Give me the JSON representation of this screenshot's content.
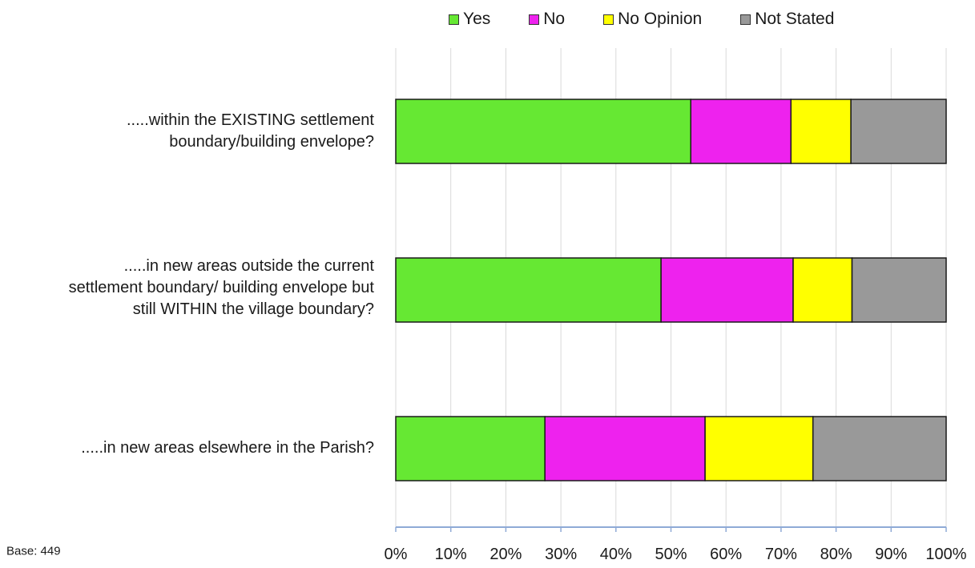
{
  "chart_data": {
    "type": "bar",
    "orientation": "horizontal",
    "stacked": true,
    "categories": [
      ".....within the EXISTING settlement\nboundary/building envelope?",
      ".....in new areas outside the current\nsettlement boundary/ building envelope but\nstill WITHIN the village boundary?",
      ".....in new areas elsewhere in the Parish?"
    ],
    "series": [
      {
        "name": "Yes",
        "color": "#66e833",
        "values": [
          53.6,
          48.2,
          27.1
        ]
      },
      {
        "name": "No",
        "color": "#ee22ee",
        "values": [
          18.2,
          24.0,
          29.1
        ]
      },
      {
        "name": "No Opinion",
        "color": "#ffff00",
        "values": [
          10.9,
          10.7,
          19.6
        ]
      },
      {
        "name": "Not Stated",
        "color": "#999999",
        "values": [
          17.3,
          17.1,
          24.2
        ]
      }
    ],
    "xlim": [
      0,
      100
    ],
    "x_ticks": [
      "0%",
      "10%",
      "20%",
      "30%",
      "40%",
      "50%",
      "60%",
      "70%",
      "80%",
      "90%",
      "100%"
    ],
    "grid": true,
    "legend_position": "top",
    "note": "Base: 449"
  }
}
